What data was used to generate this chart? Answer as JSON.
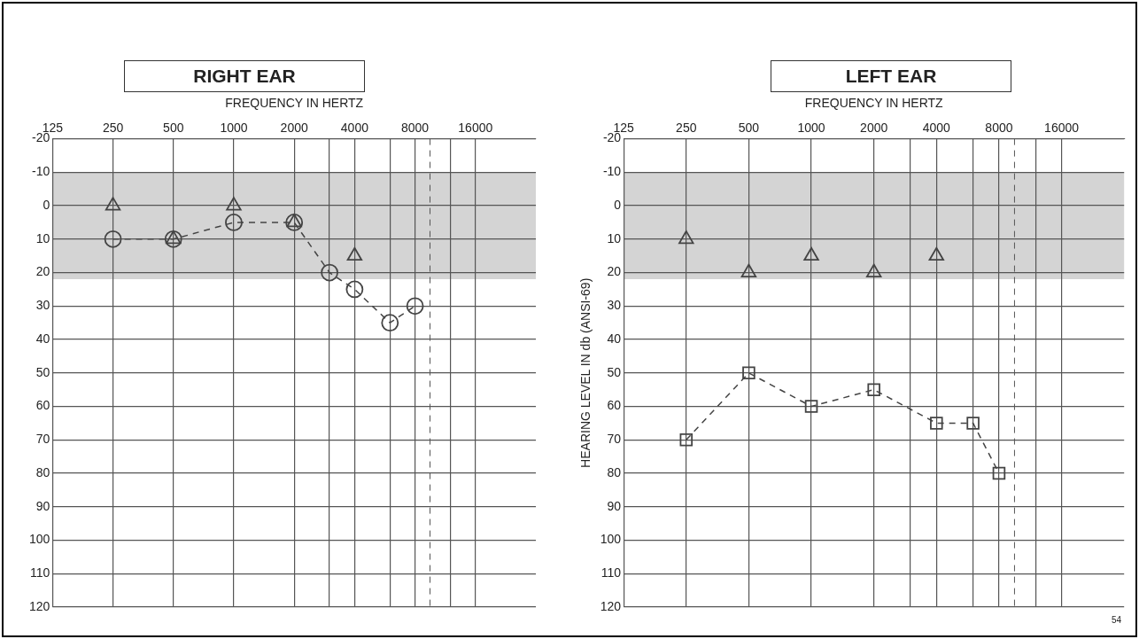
{
  "chart_data": [
    {
      "type": "line",
      "title": "RIGHT EAR",
      "xlabel": "FREQUENCY IN HERTZ",
      "log": "x",
      "grid": true,
      "legend": false,
      "xlim": [
        125,
        32000
      ],
      "xticks": [
        125,
        250,
        500,
        1000,
        2000,
        {
          "value": 3000,
          "label": null
        },
        4000,
        {
          "value": 6000,
          "label": null
        },
        8000,
        {
          "value": 12000,
          "label": null
        },
        16000
      ],
      "ylim": [
        120,
        -20
      ],
      "yticks": [
        -20,
        -10,
        0,
        10,
        20,
        30,
        40,
        50,
        60,
        70,
        80,
        90,
        100,
        110,
        120
      ],
      "bands": [
        {
          "axis": "y",
          "from": -10,
          "to": 22,
          "color": "#d4d4d4"
        }
      ],
      "ref_lines": [
        {
          "axis": "x",
          "value": 9500,
          "line_style": "dashed"
        }
      ],
      "series": [
        {
          "color": "#444444",
          "marker": "circle",
          "line_style": "dashed",
          "x": [
            250,
            500,
            1000,
            2000,
            3000,
            4000,
            6000,
            8000
          ],
          "values": [
            10,
            10,
            5,
            5,
            20,
            25,
            35,
            30
          ]
        },
        {
          "type": "scatter",
          "color": "#444444",
          "marker": "triangle",
          "x": [
            250,
            500,
            1000,
            2000,
            4000
          ],
          "values": [
            0,
            10,
            0,
            5,
            15
          ]
        }
      ]
    },
    {
      "type": "line",
      "title": "LEFT EAR",
      "xlabel": "FREQUENCY IN HERTZ",
      "ylabel": "HEARING LEVEL IN db (ANSI-69)",
      "log": "x",
      "grid": true,
      "legend": false,
      "xlim": [
        125,
        32000
      ],
      "xticks": [
        125,
        250,
        500,
        1000,
        2000,
        {
          "value": 3000,
          "label": null
        },
        4000,
        {
          "value": 6000,
          "label": null
        },
        8000,
        {
          "value": 12000,
          "label": null
        },
        16000
      ],
      "ylim": [
        120,
        -20
      ],
      "yticks": [
        -20,
        -10,
        0,
        10,
        20,
        30,
        40,
        50,
        60,
        70,
        80,
        90,
        100,
        110,
        120
      ],
      "bands": [
        {
          "axis": "y",
          "from": -10,
          "to": 22,
          "color": "#d4d4d4"
        }
      ],
      "ref_lines": [
        {
          "axis": "x",
          "value": 9500,
          "line_style": "dashed"
        }
      ],
      "annotations": [
        "54"
      ],
      "series": [
        {
          "color": "#444444",
          "marker": "square",
          "line_style": "dashed",
          "x": [
            250,
            500,
            1000,
            2000,
            4000,
            6000,
            8000
          ],
          "values": [
            70,
            50,
            60,
            55,
            65,
            65,
            80
          ]
        },
        {
          "type": "scatter",
          "color": "#444444",
          "marker": "triangle",
          "x": [
            250,
            500,
            1000,
            2000,
            4000
          ],
          "values": [
            10,
            20,
            15,
            20,
            15
          ]
        }
      ]
    }
  ]
}
